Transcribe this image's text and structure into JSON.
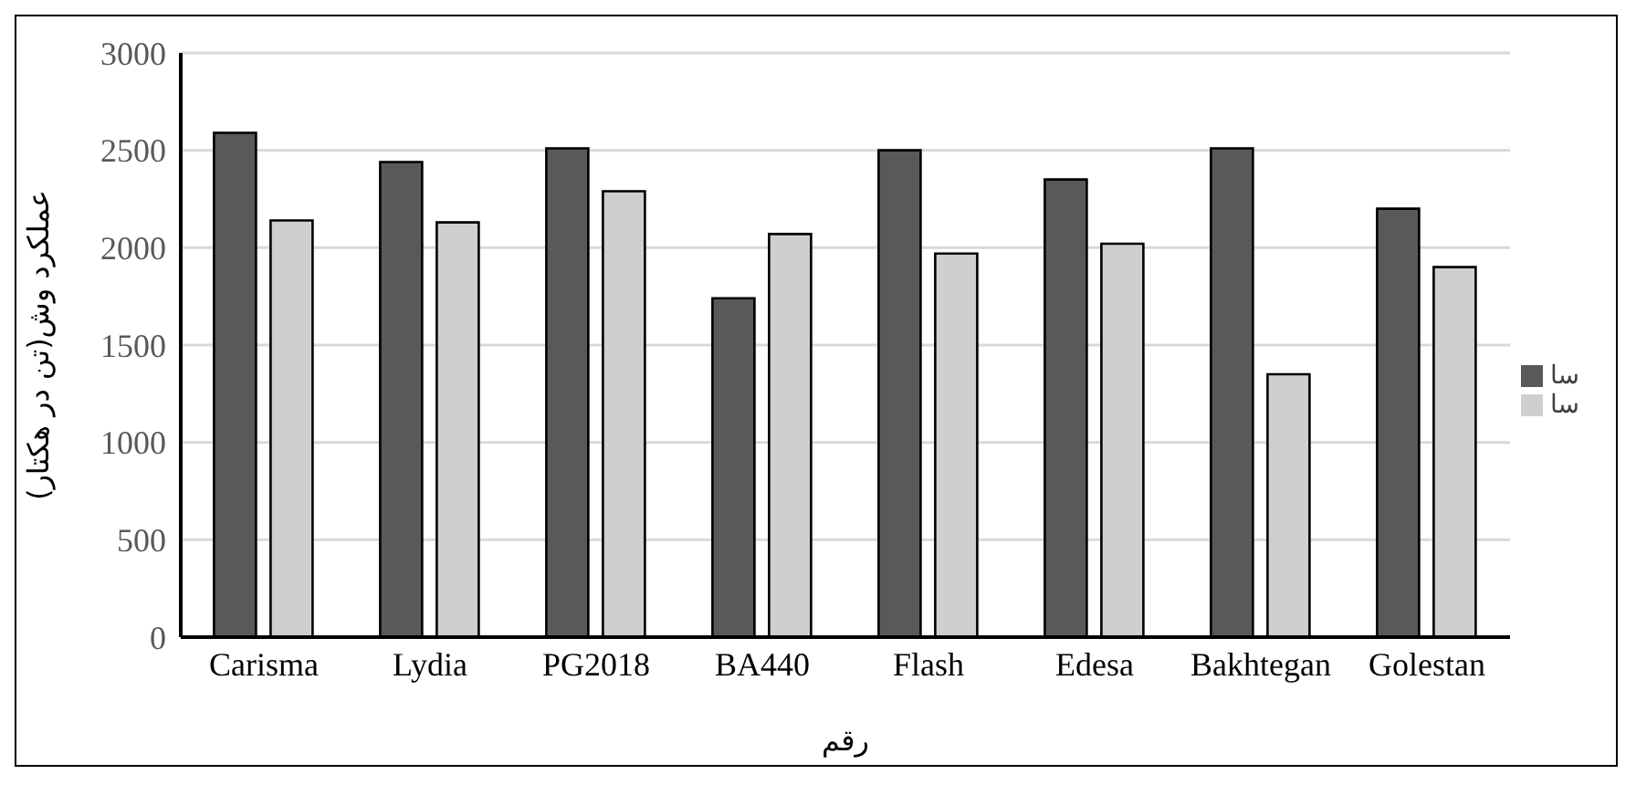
{
  "chart_data": {
    "type": "bar",
    "xlabel": "رقم",
    "ylabel": "عملکرد وش(تن در هکتار)",
    "categories": [
      "Carisma",
      "Lydia",
      "PG2018",
      "BA440",
      "Flash",
      "Edesa",
      "Bakhtegan",
      "Golestan"
    ],
    "series": [
      {
        "name": "سا",
        "color": "#595959",
        "values": [
          2590,
          2440,
          2510,
          1740,
          2500,
          2350,
          2510,
          2200
        ]
      },
      {
        "name": "سا",
        "color": "#d0cfd0",
        "values": [
          2140,
          2130,
          2290,
          2070,
          1970,
          2020,
          1350,
          1900
        ]
      }
    ],
    "ylim": [
      0,
      3000
    ],
    "yticks": [
      0,
      500,
      1000,
      1500,
      2000,
      2500,
      3000
    ],
    "grid": "y",
    "legend": "right"
  }
}
